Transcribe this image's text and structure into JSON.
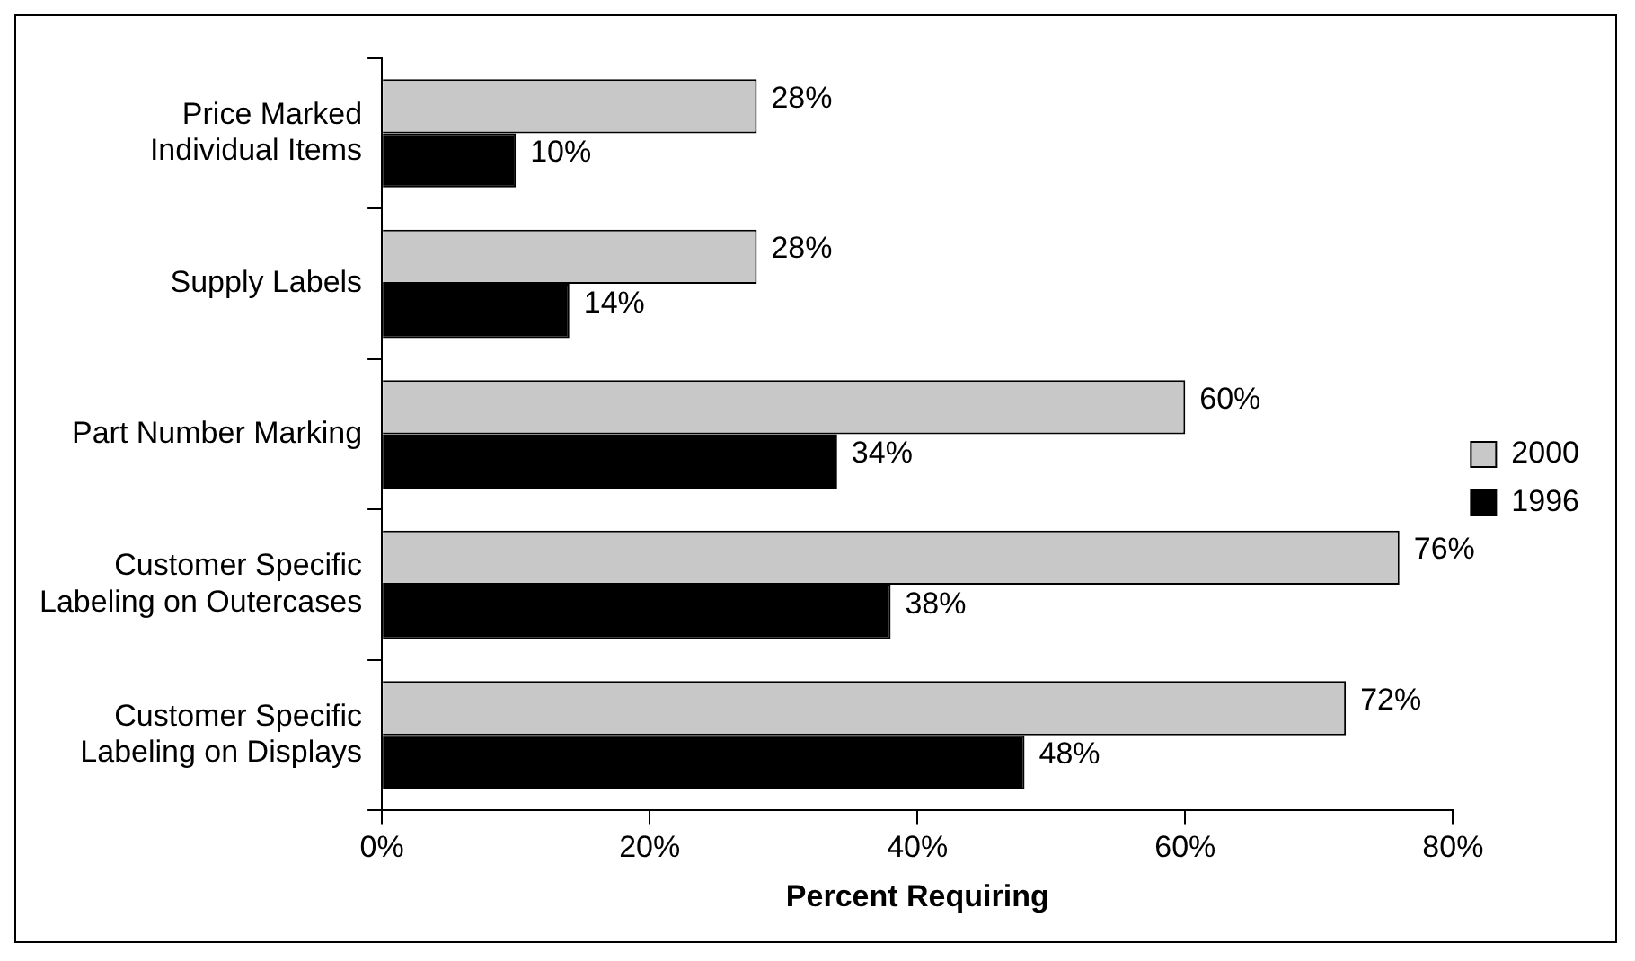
{
  "chart_data": {
    "type": "bar",
    "orientation": "horizontal",
    "xlabel": "Percent Requiring",
    "categories": [
      "Price Marked Individual Items",
      "Supply Labels",
      "Part Number Marking",
      "Customer Specific Labeling on Outercases",
      "Customer Specific Labeling on Displays"
    ],
    "series": [
      {
        "name": "2000",
        "color": "#c8c8c8",
        "values": [
          28,
          28,
          60,
          76,
          72
        ],
        "value_labels": [
          "28%",
          "28%",
          "60%",
          "76%",
          "72%"
        ]
      },
      {
        "name": "1996",
        "color": "#000000",
        "values": [
          10,
          14,
          34,
          38,
          48
        ],
        "value_labels": [
          "10%",
          "14%",
          "34%",
          "38%",
          "48%"
        ]
      }
    ],
    "xlim": [
      0,
      80
    ],
    "xticks": [
      {
        "value": 0,
        "label": "0%"
      },
      {
        "value": 20,
        "label": "20%"
      },
      {
        "value": 40,
        "label": "40%"
      },
      {
        "value": 60,
        "label": "60%"
      },
      {
        "value": 80,
        "label": "80%"
      }
    ],
    "grid": false,
    "legend": "right"
  }
}
